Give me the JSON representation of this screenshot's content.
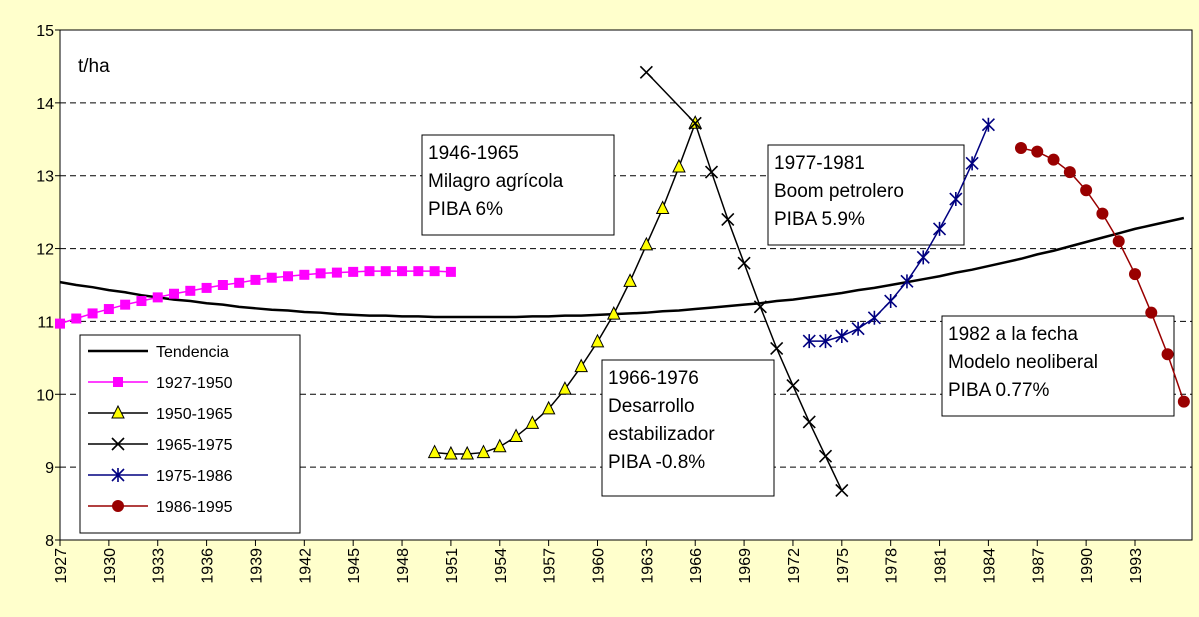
{
  "chart_data": {
    "type": "line",
    "y_unit_label": "t/ha",
    "ylim": [
      8,
      15
    ],
    "yticks": [
      8,
      9,
      10,
      11,
      12,
      13,
      14,
      15
    ],
    "xlim": [
      1927,
      1996.5
    ],
    "xticks": [
      1927,
      1930,
      1933,
      1936,
      1939,
      1942,
      1945,
      1948,
      1951,
      1954,
      1957,
      1960,
      1963,
      1966,
      1969,
      1972,
      1975,
      1978,
      1981,
      1984,
      1987,
      1990,
      1993
    ],
    "grid": true,
    "legend": "lower-left",
    "series": [
      {
        "name": "Tendencia",
        "color": "#000000",
        "marker": "none",
        "x": [
          1927,
          1928,
          1929,
          1930,
          1931,
          1932,
          1933,
          1934,
          1935,
          1936,
          1937,
          1938,
          1939,
          1940,
          1941,
          1942,
          1943,
          1944,
          1945,
          1946,
          1947,
          1948,
          1949,
          1950,
          1951,
          1952,
          1953,
          1954,
          1955,
          1956,
          1957,
          1958,
          1959,
          1960,
          1961,
          1962,
          1963,
          1964,
          1965,
          1966,
          1967,
          1968,
          1969,
          1970,
          1971,
          1972,
          1973,
          1974,
          1975,
          1976,
          1977,
          1978,
          1979,
          1980,
          1981,
          1982,
          1983,
          1984,
          1985,
          1986,
          1987,
          1988,
          1989,
          1990,
          1991,
          1992,
          1993,
          1994,
          1995,
          1996
        ],
        "values": [
          11.54,
          11.5,
          11.47,
          11.43,
          11.4,
          11.36,
          11.33,
          11.3,
          11.28,
          11.25,
          11.23,
          11.2,
          11.18,
          11.16,
          11.15,
          11.13,
          11.12,
          11.1,
          11.09,
          11.08,
          11.08,
          11.07,
          11.07,
          11.06,
          11.06,
          11.06,
          11.06,
          11.06,
          11.06,
          11.07,
          11.07,
          11.08,
          11.08,
          11.09,
          11.1,
          11.11,
          11.12,
          11.14,
          11.15,
          11.17,
          11.19,
          11.21,
          11.23,
          11.25,
          11.28,
          11.3,
          11.33,
          11.36,
          11.39,
          11.43,
          11.46,
          11.5,
          11.54,
          11.58,
          11.62,
          11.67,
          11.71,
          11.76,
          11.81,
          11.86,
          11.92,
          11.97,
          12.03,
          12.09,
          12.15,
          12.21,
          12.27,
          12.32,
          12.37,
          12.42
        ]
      },
      {
        "name": "1927-1950",
        "color": "#ff00ff",
        "marker": "square",
        "x": [
          1927,
          1928,
          1929,
          1930,
          1931,
          1932,
          1933,
          1934,
          1935,
          1936,
          1937,
          1938,
          1939,
          1940,
          1941,
          1942,
          1943,
          1944,
          1945,
          1946,
          1947,
          1948,
          1949,
          1950,
          1951
        ],
        "values": [
          10.97,
          11.04,
          11.11,
          11.17,
          11.23,
          11.28,
          11.33,
          11.38,
          11.42,
          11.46,
          11.5,
          11.53,
          11.57,
          11.6,
          11.62,
          11.64,
          11.66,
          11.67,
          11.68,
          11.69,
          11.69,
          11.69,
          11.69,
          11.69,
          11.68
        ]
      },
      {
        "name": "1950-1965",
        "color": "#ffff00",
        "marker": "triangle",
        "x": [
          1950,
          1951,
          1952,
          1953,
          1954,
          1955,
          1956,
          1957,
          1958,
          1959,
          1960,
          1961,
          1962,
          1963,
          1964,
          1965,
          1966
        ],
        "values": [
          9.2,
          9.18,
          9.18,
          9.2,
          9.28,
          9.42,
          9.6,
          9.8,
          10.07,
          10.38,
          10.72,
          11.1,
          11.55,
          12.05,
          12.55,
          13.12,
          13.72
        ]
      },
      {
        "name": "1965-1975",
        "color": "#000000",
        "marker": "x",
        "x": [
          1963,
          1966,
          1967,
          1968,
          1969,
          1970,
          1971,
          1972,
          1973,
          1974,
          1975
        ],
        "values": [
          14.42,
          13.72,
          13.05,
          12.4,
          11.8,
          11.2,
          10.63,
          10.12,
          9.62,
          9.15,
          8.68
        ]
      },
      {
        "name": "1975-1986",
        "color": "#000080",
        "marker": "star",
        "x": [
          1973,
          1974,
          1975,
          1976,
          1977,
          1978,
          1979,
          1980,
          1981,
          1982,
          1983,
          1984
        ],
        "values": [
          10.73,
          10.73,
          10.8,
          10.9,
          11.05,
          11.28,
          11.55,
          11.88,
          12.27,
          12.68,
          13.17,
          13.7
        ]
      },
      {
        "name": "1986-1995",
        "color": "#990000",
        "marker": "circle",
        "x": [
          1986,
          1987,
          1988,
          1989,
          1990,
          1991,
          1992,
          1993,
          1994,
          1995,
          1996
        ],
        "values": [
          13.38,
          13.33,
          13.22,
          13.05,
          12.8,
          12.48,
          12.1,
          11.65,
          11.12,
          10.55,
          9.9
        ]
      }
    ],
    "annotations": [
      {
        "lines": [
          "1946-1965",
          "Milagro agrícola",
          "PIBA 6%"
        ]
      },
      {
        "lines": [
          "1977-1981",
          "Boom petrolero",
          "PIBA 5.9%"
        ]
      },
      {
        "lines": [
          "1966-1976",
          "Desarrollo",
          "estabilizador",
          "PIBA -0.8%"
        ]
      },
      {
        "lines": [
          "1982 a la fecha",
          "Modelo neoliberal",
          "PIBA 0.77%"
        ]
      }
    ]
  }
}
